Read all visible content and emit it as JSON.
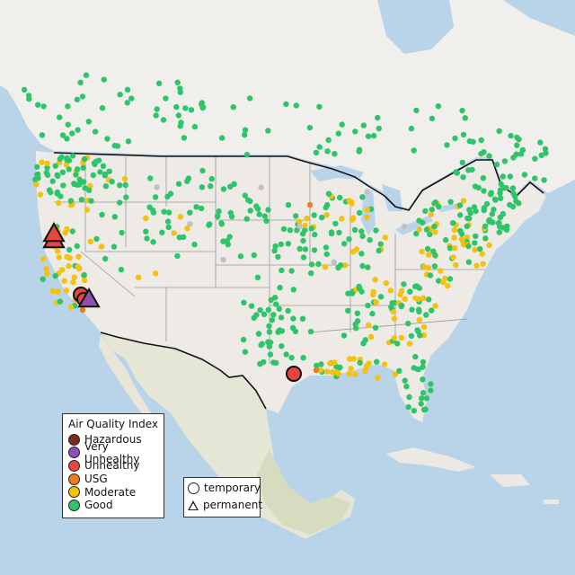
{
  "map_title": "",
  "colors": {
    "ocean": "#b9d3e9",
    "land": "#eeebe6",
    "land_alt": "#f3f1ed",
    "canada": "#f1efec",
    "mexico_veg": "#d9dec6",
    "state_line": "#9a9a9a",
    "border_line": "#111111"
  },
  "legend": {
    "title": "Air Quality Index",
    "items": [
      {
        "label": "Hazardous",
        "color": "#7e2a1f"
      },
      {
        "label": "Very Unhealthy",
        "color": "#8f4fb3"
      },
      {
        "label": "Unhealthy",
        "color": "#e8453c"
      },
      {
        "label": "USG",
        "color": "#ee7c1e"
      },
      {
        "label": "Moderate",
        "color": "#f2c20e"
      },
      {
        "label": "Good",
        "color": "#2ec46a"
      }
    ]
  },
  "shape_legend": {
    "items": [
      {
        "label": "temporary",
        "shape": "circle"
      },
      {
        "label": "permanent",
        "shape": "triangle"
      }
    ]
  },
  "monitor_summary": {
    "large_markers": [
      {
        "category": "Unhealthy",
        "shape": "triangle",
        "region": "Northern California"
      },
      {
        "category": "Unhealthy",
        "shape": "triangle",
        "region": "Northern California"
      },
      {
        "category": "Unhealthy",
        "shape": "circle",
        "region": "Central California"
      },
      {
        "category": "Very Unhealthy",
        "shape": "triangle",
        "region": "Central California"
      },
      {
        "category": "Unhealthy",
        "shape": "circle",
        "region": "Texas Gulf Coast"
      }
    ]
  }
}
